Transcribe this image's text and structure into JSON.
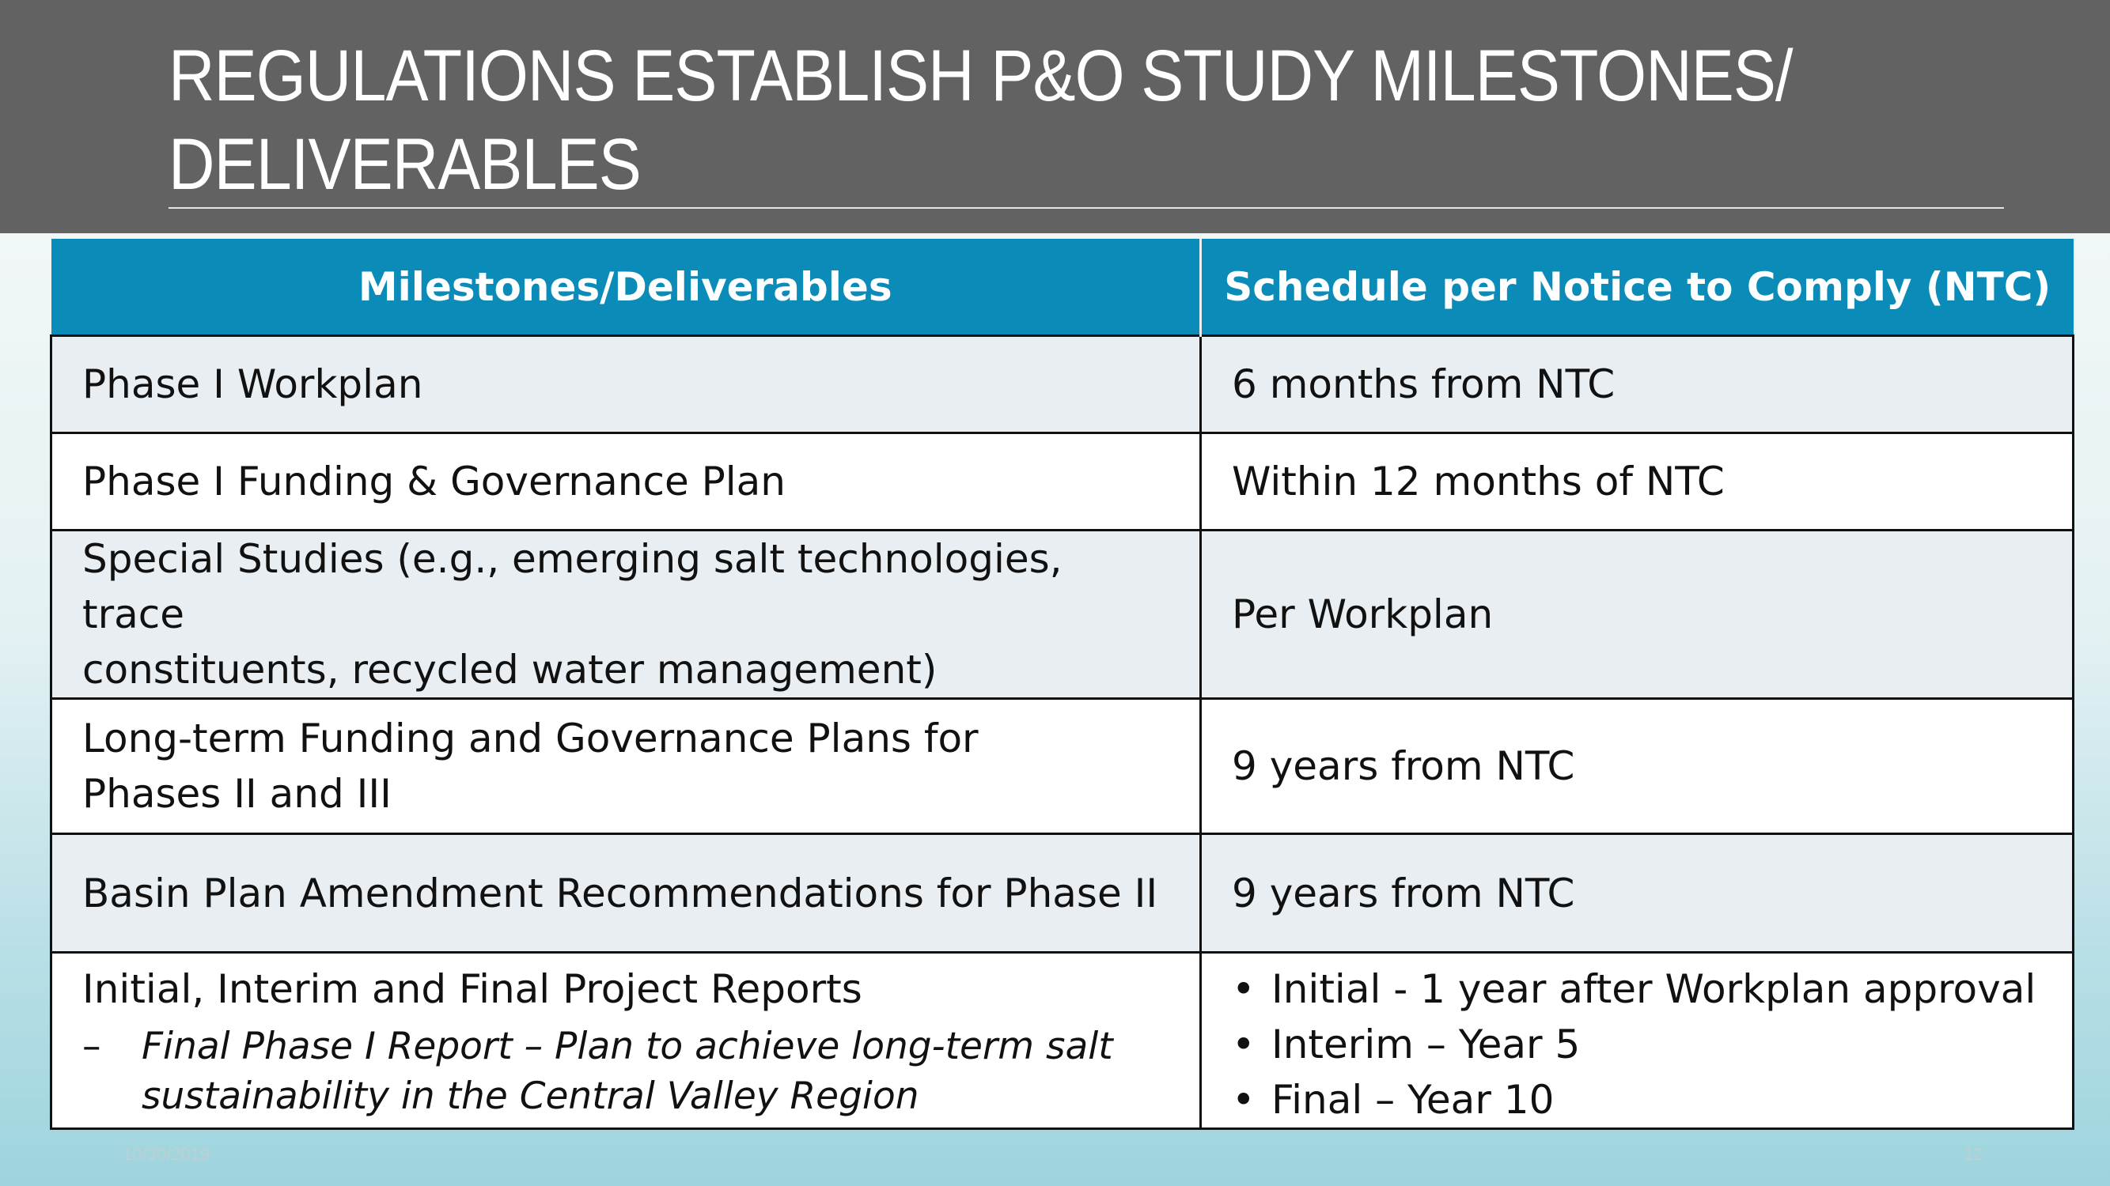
{
  "slide": {
    "title_lines": [
      "REGULATIONS ESTABLISH P&O STUDY MILESTONES/",
      "DELIVERABLES"
    ],
    "date": "10/30/2019",
    "page_number": "12"
  },
  "table": {
    "headers": [
      "Milestones/Deliverables",
      "Schedule per Notice to Comply (NTC)"
    ],
    "rows": [
      {
        "milestone": "Phase I Workplan",
        "schedule": "6 months from NTC"
      },
      {
        "milestone": "Phase I Funding & Governance Plan",
        "schedule": "Within 12 months of NTC"
      },
      {
        "milestone_lines": [
          "Special Studies (e.g., emerging salt technologies, trace",
          "constituents, recycled water management)"
        ],
        "schedule": "Per Workplan"
      },
      {
        "milestone_lines": [
          "Long-term Funding and Governance Plans for",
          "Phases II and III"
        ],
        "schedule": "9 years from NTC"
      },
      {
        "milestone": "Basin Plan Amendment Recommendations for Phase II",
        "schedule": "9 years from NTC"
      },
      {
        "milestone": "Initial, Interim and Final Project Reports",
        "sub_dash": "–",
        "sub_lines": [
          "Final Phase I Report – Plan to achieve long-term salt",
          "sustainability in the Central Valley Region"
        ],
        "bullet_char": "•",
        "schedule_bullets": [
          "Initial - 1 year after Workplan approval",
          "Interim – Year 5",
          "Final – Year 10"
        ]
      }
    ]
  }
}
